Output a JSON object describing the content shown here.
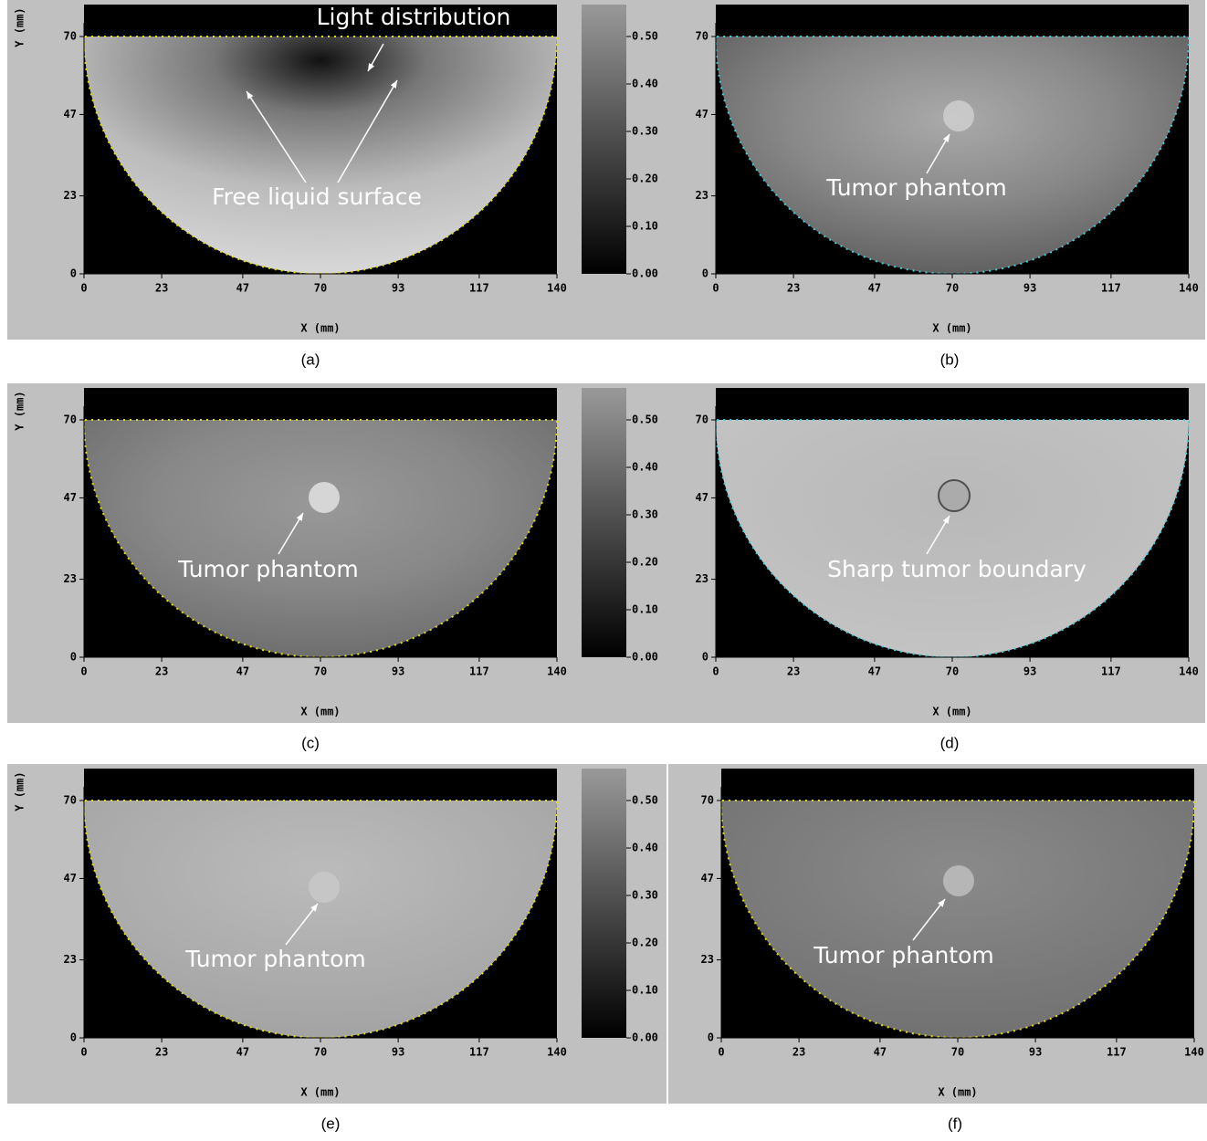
{
  "axes": {
    "x_label": "X (mm)",
    "y_label": "Y (mm)",
    "xticks": [
      0,
      23,
      47,
      70,
      93,
      117,
      140
    ],
    "yticks": [
      0,
      23,
      47,
      70
    ],
    "colorbar_ticks": [
      "0.00",
      "0.10",
      "0.20",
      "0.30",
      "0.40",
      "0.50"
    ]
  },
  "panels": [
    {
      "caption": "(a)",
      "annotations": [
        "Light distribution",
        "Free liquid surface"
      ]
    },
    {
      "caption": "(b)",
      "annotations": [
        "Tumor phantom"
      ]
    },
    {
      "caption": "(c)",
      "annotations": [
        "Tumor phantom"
      ]
    },
    {
      "caption": "(d)",
      "annotations": [
        "Sharp tumor boundary"
      ]
    },
    {
      "caption": "(e)",
      "annotations": [
        "Tumor phantom"
      ]
    },
    {
      "caption": "(f)",
      "annotations": [
        "Tumor phantom"
      ]
    }
  ]
}
